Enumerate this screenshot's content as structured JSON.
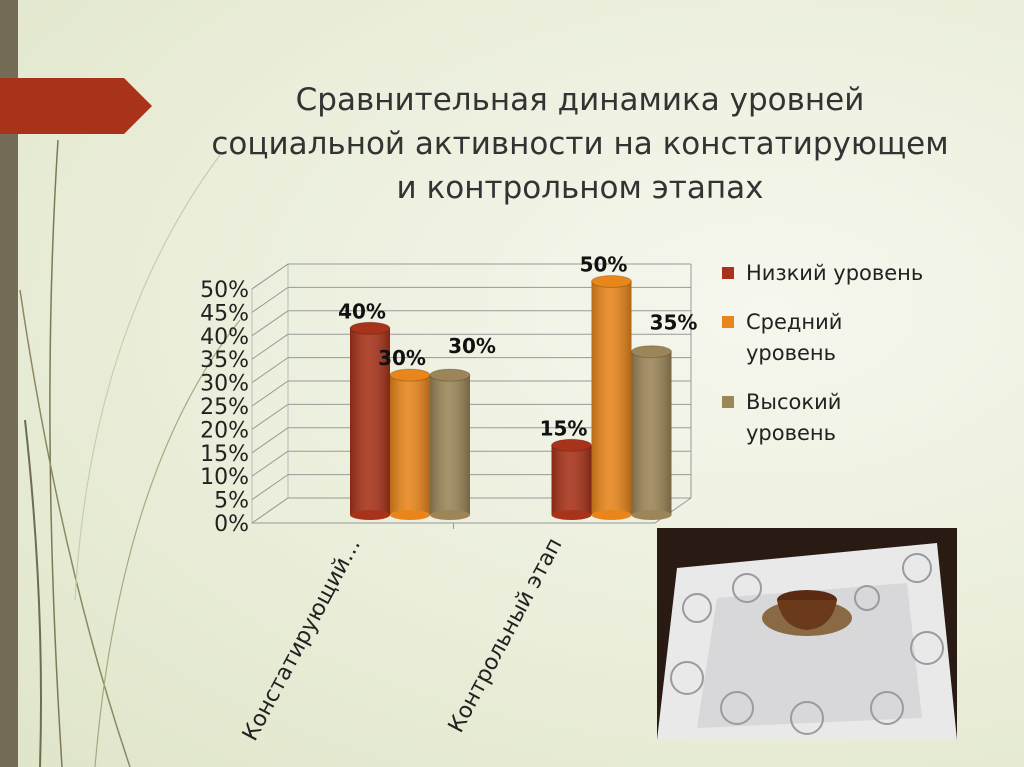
{
  "slide": {
    "title": "Сравнительная динамика уровней социальной активности на констатирующем и контрольном этапах"
  },
  "chart_data": {
    "type": "bar",
    "style": "3d-cylinder",
    "title": "",
    "categories": [
      "Констатирующий…",
      "Контрольный этап"
    ],
    "series": [
      {
        "name": "Низкий уровень",
        "values": [
          40,
          15
        ],
        "color": "#a8331a"
      },
      {
        "name": "Средний уровень",
        "values": [
          30,
          50
        ],
        "color": "#e8861c"
      },
      {
        "name": "Высокий уровень",
        "values": [
          30,
          35
        ],
        "color": "#9c8558"
      }
    ],
    "data_labels": [
      [
        "40%",
        "15%"
      ],
      [
        "30%",
        "50%"
      ],
      [
        "30%",
        "35%"
      ]
    ],
    "y_ticks": [
      "0%",
      "5%",
      "10%",
      "15%",
      "20%",
      "25%",
      "30%",
      "35%",
      "40%",
      "45%",
      "50%"
    ],
    "ylim": [
      0,
      50
    ],
    "y_unit": "%",
    "grid": true,
    "legend_position": "right"
  },
  "colors": {
    "accent": "#a8331a",
    "sidebar": "#756c57"
  },
  "photo": {
    "description_icon": "lace-tablecloth-teacup-photo"
  }
}
